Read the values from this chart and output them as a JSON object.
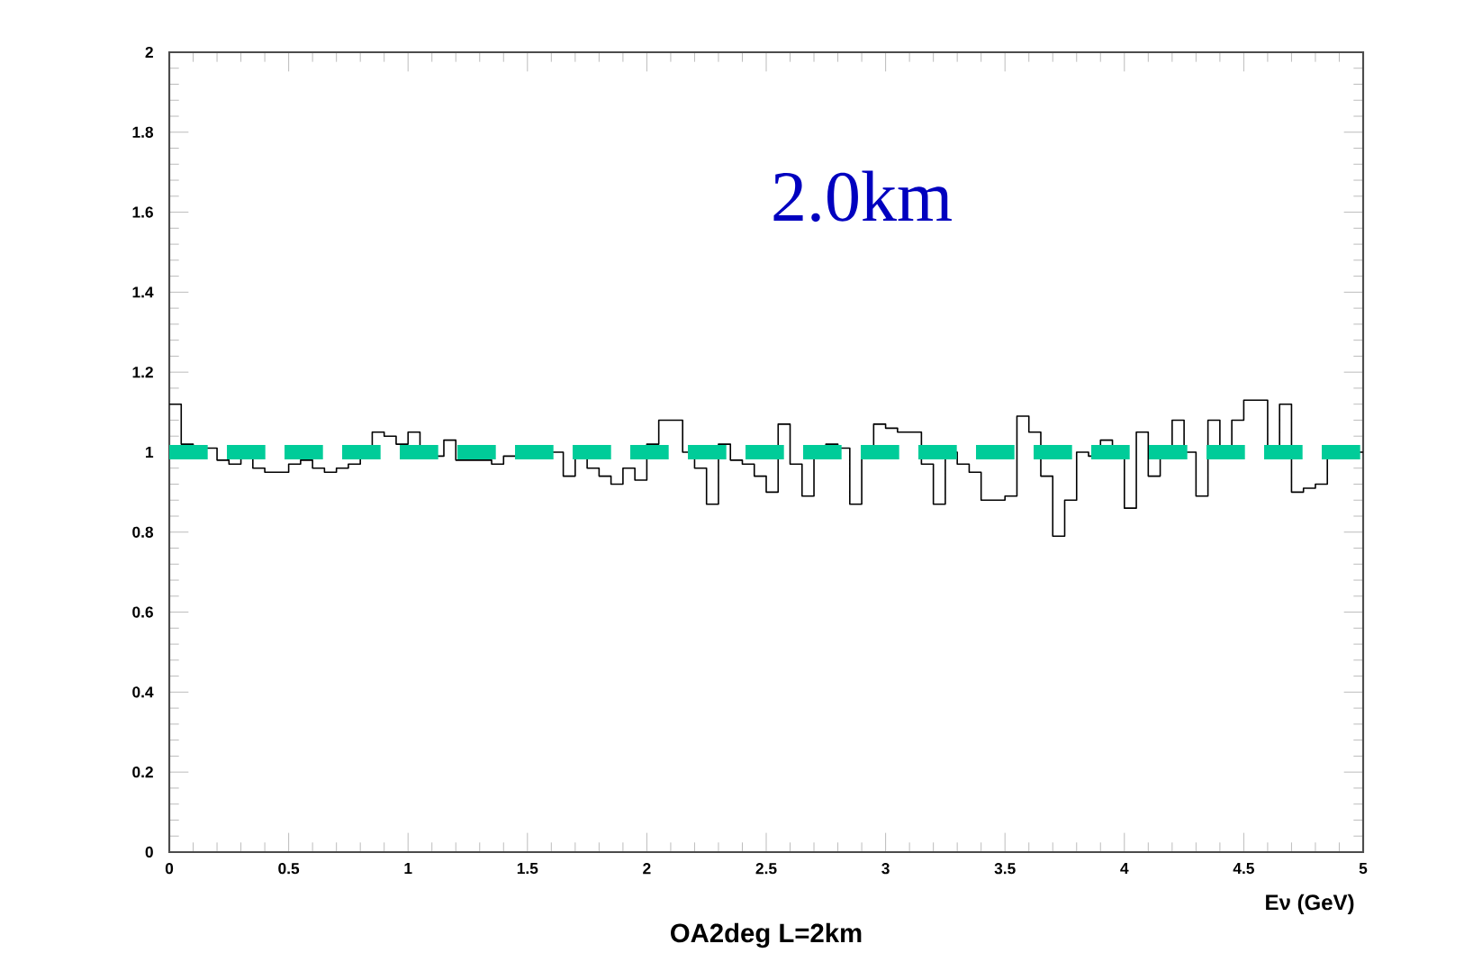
{
  "chart_data": {
    "type": "histogram",
    "title": "OA2deg L=2km",
    "xlabel": "Eν (GeV)",
    "annotations": [
      "2.0km"
    ],
    "bins": [
      0,
      0.05,
      0.1,
      0.15,
      0.2,
      0.25,
      0.3,
      0.35,
      0.4,
      0.45,
      0.5,
      0.55,
      0.6,
      0.65,
      0.7,
      0.75,
      0.8,
      0.85,
      0.9,
      0.95,
      1,
      1.05,
      1.1,
      1.15,
      1.2,
      1.25,
      1.3,
      1.35,
      1.4,
      1.45,
      1.5,
      1.55,
      1.6,
      1.65,
      1.7,
      1.75,
      1.8,
      1.85,
      1.9,
      1.95,
      2,
      2.05,
      2.1,
      2.15,
      2.2,
      2.25,
      2.3,
      2.35,
      2.4,
      2.45,
      2.5,
      2.55,
      2.6,
      2.65,
      2.7,
      2.75,
      2.8,
      2.85,
      2.9,
      2.95,
      3,
      3.05,
      3.1,
      3.15,
      3.2,
      3.25,
      3.3,
      3.35,
      3.4,
      3.45,
      3.5,
      3.55,
      3.6,
      3.65,
      3.7,
      3.75,
      3.8,
      3.85,
      3.9,
      3.95,
      4,
      4.05,
      4.1,
      4.15,
      4.2,
      4.25,
      4.3,
      4.35,
      4.4,
      4.45,
      4.5,
      4.55,
      4.6,
      4.65,
      4.7,
      4.75,
      4.8,
      4.85,
      4.9,
      4.95,
      5
    ],
    "values": [
      1.12,
      1.02,
      1.0,
      1.01,
      0.98,
      0.97,
      1.0,
      0.96,
      0.95,
      0.95,
      0.97,
      0.98,
      0.96,
      0.95,
      0.96,
      0.97,
      1.0,
      1.05,
      1.04,
      1.02,
      1.05,
      0.99,
      0.99,
      1.03,
      0.98,
      0.98,
      0.98,
      0.97,
      0.99,
      0.99,
      1.0,
      1.01,
      1.0,
      0.94,
      0.99,
      0.96,
      0.94,
      0.92,
      0.96,
      0.93,
      1.02,
      1.08,
      1.08,
      1.0,
      0.96,
      0.87,
      1.02,
      0.98,
      0.97,
      0.94,
      0.9,
      1.07,
      0.97,
      0.89,
      1.0,
      1.02,
      1.01,
      0.87,
      0.99,
      1.07,
      1.06,
      1.05,
      1.05,
      0.97,
      0.87,
      1.0,
      0.97,
      0.95,
      0.88,
      0.88,
      0.89,
      1.09,
      1.05,
      0.94,
      0.79,
      0.88,
      1.0,
      0.99,
      1.03,
      1.01,
      0.86,
      1.05,
      0.94,
      1.0,
      1.08,
      1.0,
      0.89,
      1.08,
      1.0,
      1.08,
      1.13,
      1.13,
      1.0,
      1.12,
      0.9,
      0.91,
      0.92,
      1.0,
      1.0,
      1.0
    ],
    "color": "#000000",
    "xlim": [
      0,
      5
    ],
    "ylim": [
      0,
      2
    ],
    "xticks": [
      0,
      0.5,
      1,
      1.5,
      2,
      2.5,
      3,
      3.5,
      4,
      4.5,
      5
    ],
    "yticks": [
      0,
      0.2,
      0.4,
      0.6,
      0.8,
      1,
      1.2,
      1.4,
      1.6,
      1.8,
      2
    ],
    "ref_lines": [
      {
        "axis": "y",
        "value": 1,
        "color": "#00cc99",
        "line_style": "dashed"
      }
    ]
  }
}
